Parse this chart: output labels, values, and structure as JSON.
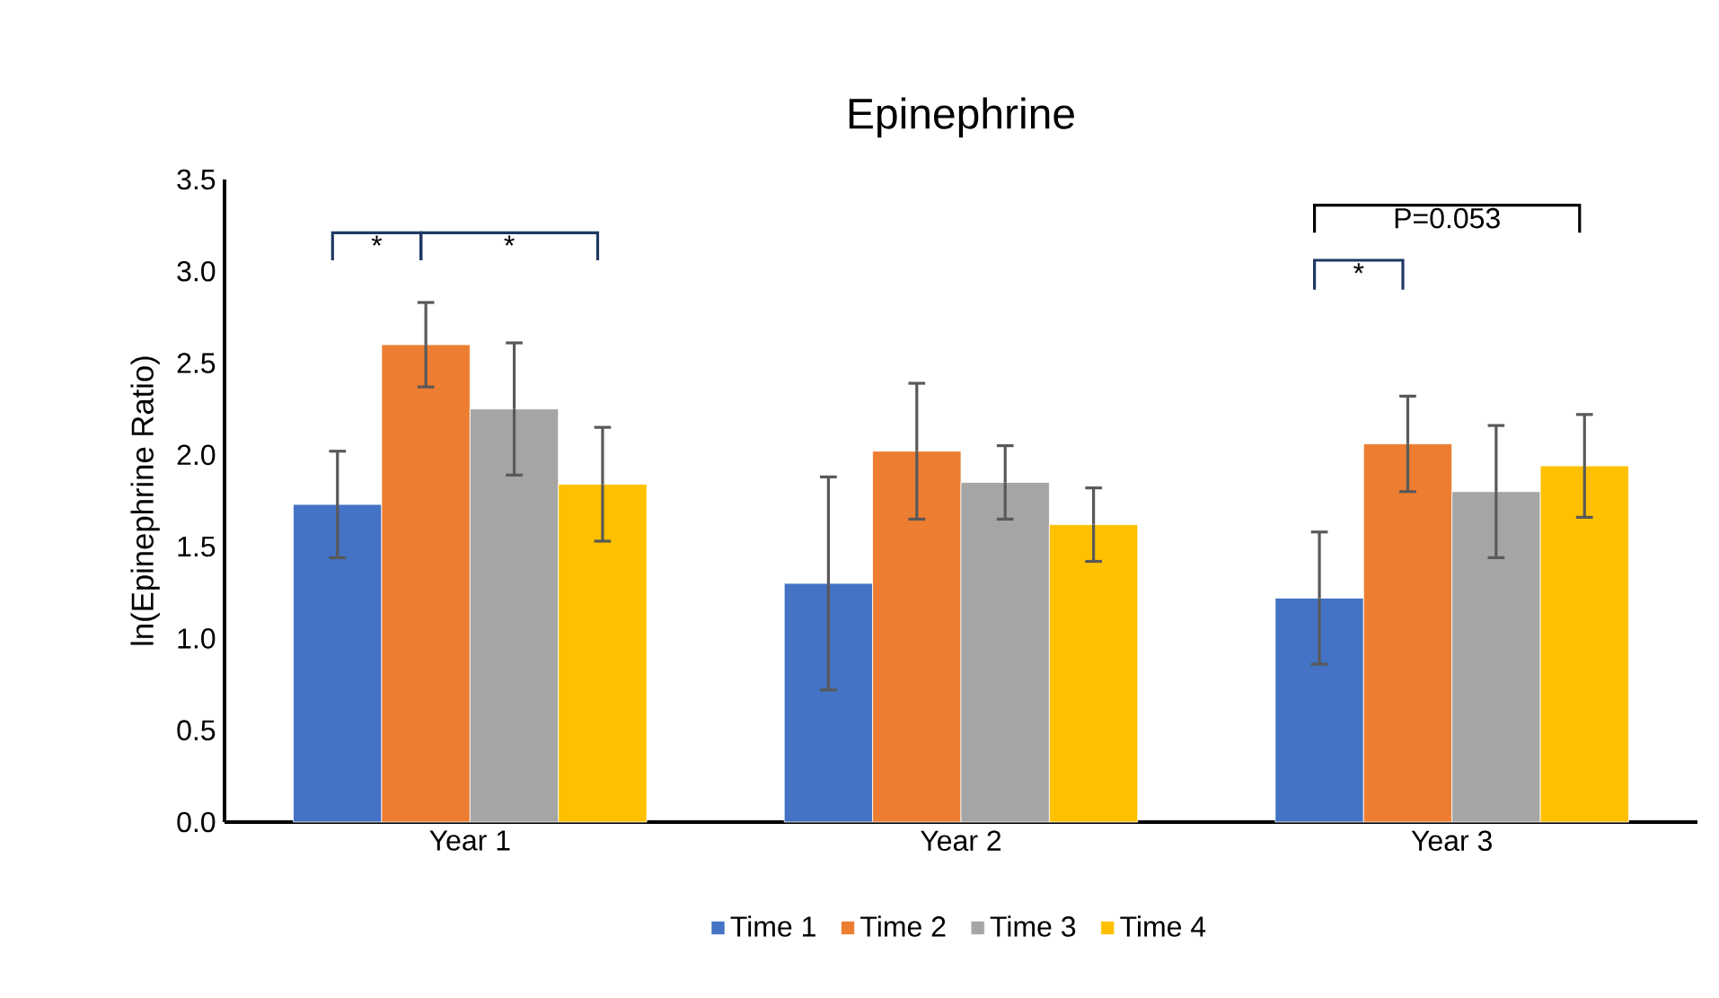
{
  "chart_data": {
    "type": "bar",
    "title": "Epinephrine",
    "ylabel": "ln(Epinephrine Ratio)",
    "categories": [
      "Year 1",
      "Year 2",
      "Year 3"
    ],
    "series": [
      {
        "name": "Time 1",
        "color": "#4472c4",
        "values": [
          1.73,
          1.3,
          1.22
        ],
        "errors": [
          0.29,
          0.58,
          0.36
        ]
      },
      {
        "name": "Time 2",
        "color": "#ed7d31",
        "values": [
          2.6,
          2.02,
          2.06
        ],
        "errors": [
          0.23,
          0.37,
          0.26
        ]
      },
      {
        "name": "Time 3",
        "color": "#a5a5a5",
        "values": [
          2.25,
          1.85,
          1.8
        ],
        "errors": [
          0.36,
          0.2,
          0.36
        ]
      },
      {
        "name": "Time 4",
        "color": "#ffc000",
        "values": [
          1.84,
          1.62,
          1.94
        ],
        "errors": [
          0.31,
          0.2,
          0.28
        ]
      }
    ],
    "ylim": [
      0,
      3.5
    ],
    "yticks": [
      {
        "value": 0,
        "label": "0.0"
      },
      {
        "value": 0.5,
        "label": "0.5"
      },
      {
        "value": 1,
        "label": "1.0"
      },
      {
        "value": 1.5,
        "label": "1.5"
      },
      {
        "value": 2,
        "label": "2.0"
      },
      {
        "value": 2.5,
        "label": "2.5"
      },
      {
        "value": 3,
        "label": "3.0"
      },
      {
        "value": 3.5,
        "label": "3.5"
      }
    ],
    "grid": false,
    "legend": "bottom",
    "annotations": [
      "*",
      "*",
      "*",
      "P=0.053"
    ]
  }
}
